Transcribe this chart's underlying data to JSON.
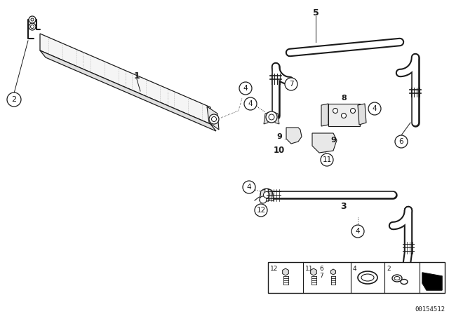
{
  "bg_color": "#ffffff",
  "part_number": "00154512",
  "fig_width": 6.4,
  "fig_height": 4.48,
  "dpi": 100,
  "dark": "#1a1a1a",
  "gray": "#888888",
  "light_gray": "#cccccc"
}
